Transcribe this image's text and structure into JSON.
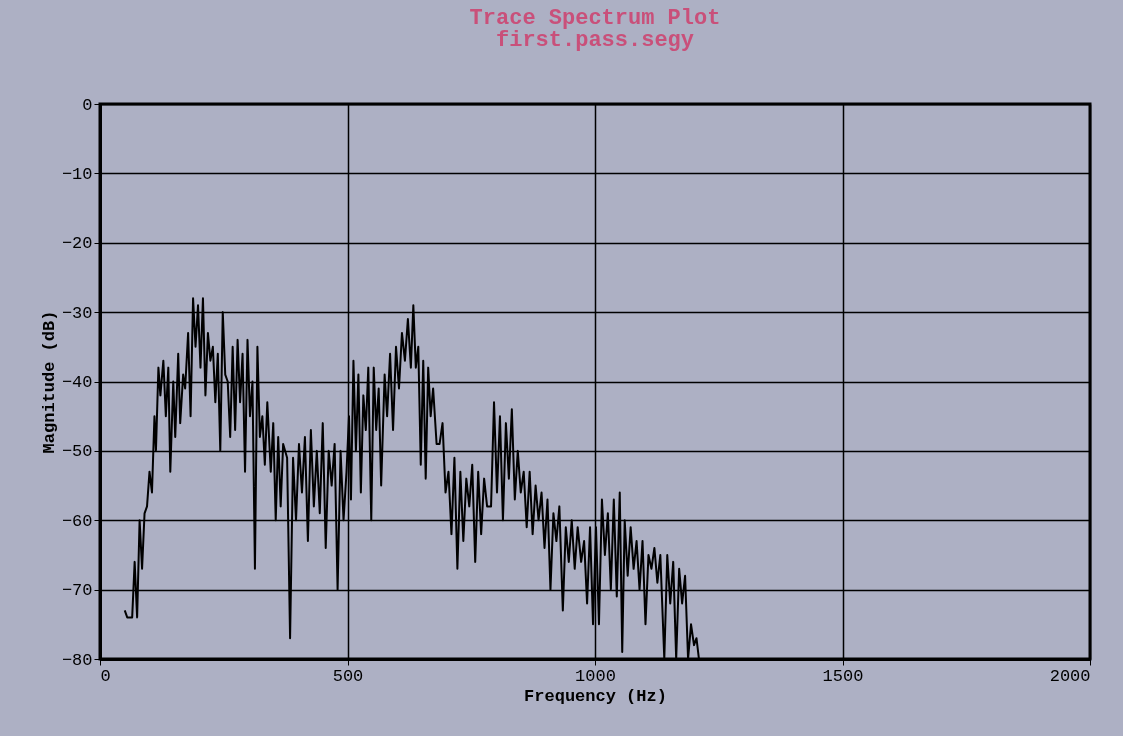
{
  "chart_data": {
    "type": "line",
    "title": "Trace Spectrum Plot",
    "subtitle": "first.pass.segy",
    "xlabel": "Frequency (Hz)",
    "ylabel": "Magnitude (dB)",
    "xlim": [
      0,
      2000
    ],
    "xticks": [
      0,
      500,
      1000,
      1500,
      2000
    ],
    "ylim": [
      -80,
      0
    ],
    "yticks": [
      -80,
      -70,
      -60,
      -50,
      -40,
      -30,
      -20,
      -10,
      0
    ],
    "grid": true,
    "marker": "none",
    "line_style": "solid",
    "series": [
      {
        "color": "#000000",
        "x": [
          50,
          55,
          65,
          70,
          75,
          80,
          85,
          90,
          95,
          100,
          105,
          110,
          113,
          118,
          122,
          128,
          133,
          138,
          142,
          148,
          152,
          158,
          162,
          168,
          172,
          178,
          183,
          188,
          193,
          198,
          203,
          208,
          213,
          218,
          223,
          228,
          233,
          238,
          243,
          248,
          253,
          258,
          263,
          268,
          273,
          278,
          283,
          288,
          293,
          298,
          303,
          308,
          313,
          318,
          323,
          328,
          333,
          338,
          345,
          350,
          355,
          360,
          365,
          370,
          378,
          384,
          390,
          396,
          402,
          408,
          414,
          420,
          426,
          432,
          438,
          444,
          450,
          456,
          462,
          468,
          474,
          480,
          486,
          492,
          498,
          503,
          507,
          512,
          517,
          522,
          527,
          532,
          537,
          542,
          548,
          553,
          558,
          563,
          568,
          575,
          580,
          586,
          592,
          598,
          604,
          610,
          616,
          622,
          628,
          633,
          638,
          643,
          648,
          653,
          658,
          663,
          668,
          673,
          680,
          686,
          692,
          698,
          704,
          710,
          716,
          722,
          728,
          734,
          740,
          746,
          752,
          758,
          764,
          770,
          776,
          782,
          790,
          796,
          802,
          808,
          814,
          820,
          826,
          832,
          838,
          844,
          850,
          856,
          862,
          868,
          874,
          880,
          886,
          892,
          898,
          904,
          910,
          916,
          922,
          928,
          935,
          941,
          947,
          953,
          959,
          965,
          972,
          978,
          984,
          990,
          996,
          1002,
          1008,
          1014,
          1020,
          1026,
          1032,
          1038,
          1044,
          1050,
          1055,
          1060,
          1066,
          1072,
          1078,
          1084,
          1090,
          1096,
          1102,
          1108,
          1114,
          1120,
          1126,
          1132,
          1140,
          1146,
          1152,
          1158,
          1164,
          1170,
          1176,
          1182,
          1188,
          1194,
          1200,
          1205,
          1210
        ],
        "values": [
          -73,
          -74,
          -74,
          -66,
          -74,
          -60,
          -67,
          -59,
          -58,
          -53,
          -56,
          -45,
          -50,
          -38,
          -42,
          -37,
          -45,
          -38,
          -53,
          -40,
          -48,
          -36,
          -46,
          -39,
          -41,
          -33,
          -45,
          -28,
          -35,
          -29,
          -38,
          -28,
          -42,
          -33,
          -37,
          -35,
          -43,
          -36,
          -50,
          -30,
          -39,
          -40,
          -48,
          -35,
          -47,
          -34,
          -43,
          -36,
          -53,
          -34,
          -45,
          -40,
          -67,
          -35,
          -48,
          -45,
          -52,
          -43,
          -53,
          -46,
          -60,
          -48,
          -58,
          -49,
          -51,
          -77,
          -51,
          -60,
          -49,
          -56,
          -48,
          -63,
          -47,
          -58,
          -50,
          -59,
          -46,
          -64,
          -50,
          -55,
          -49,
          -70,
          -50,
          -60,
          -53,
          -45,
          -57,
          -37,
          -50,
          -39,
          -56,
          -42,
          -47,
          -38,
          -60,
          -38,
          -47,
          -41,
          -55,
          -39,
          -45,
          -36,
          -47,
          -35,
          -41,
          -33,
          -37,
          -31,
          -38,
          -29,
          -38,
          -35,
          -52,
          -37,
          -54,
          -38,
          -45,
          -41,
          -49,
          -49,
          -46,
          -56,
          -53,
          -62,
          -51,
          -67,
          -53,
          -63,
          -54,
          -58,
          -52,
          -66,
          -53,
          -62,
          -54,
          -58,
          -58,
          -43,
          -56,
          -45,
          -60,
          -46,
          -54,
          -44,
          -57,
          -50,
          -56,
          -53,
          -61,
          -53,
          -62,
          -55,
          -60,
          -56,
          -64,
          -57,
          -70,
          -59,
          -63,
          -58,
          -73,
          -61,
          -66,
          -60,
          -67,
          -61,
          -66,
          -63,
          -72,
          -61,
          -75,
          -61,
          -75,
          -57,
          -65,
          -59,
          -70,
          -57,
          -71,
          -56,
          -79,
          -60,
          -68,
          -61,
          -67,
          -63,
          -70,
          -63,
          -75,
          -65,
          -67,
          -64,
          -69,
          -65,
          -80,
          -65,
          -72,
          -66,
          -80,
          -67,
          -72,
          -68,
          -80,
          -75,
          -78,
          -77,
          -80
        ]
      }
    ]
  }
}
